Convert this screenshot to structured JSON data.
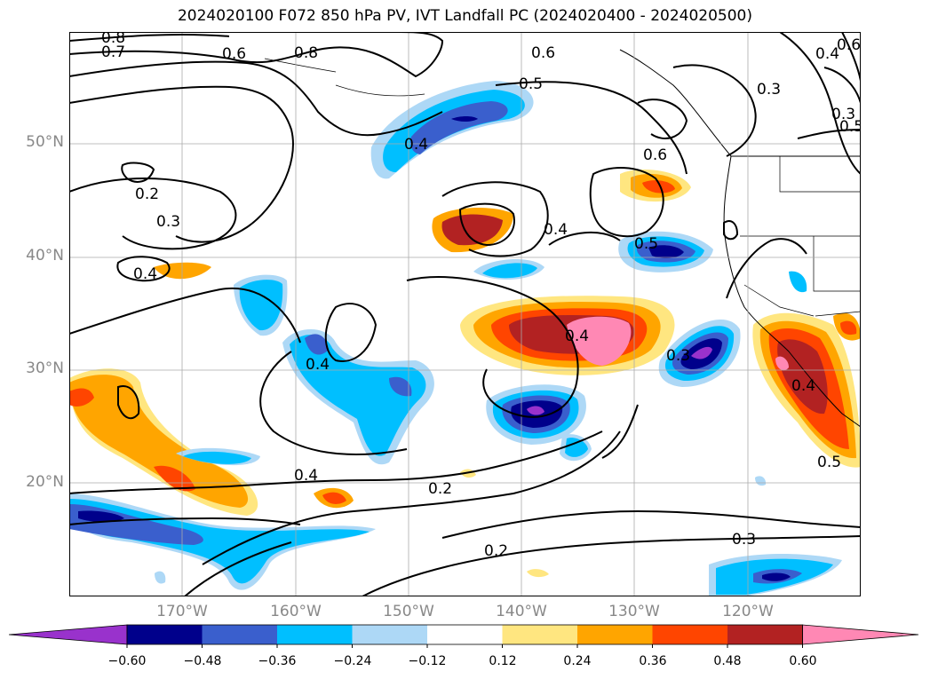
{
  "title": "2024020100 F072 850 hPa PV, IVT Landfall PC (2024020400 - 2024020500)",
  "map": {
    "lat_ticks": [
      "50°N",
      "40°N",
      "30°N",
      "20°N"
    ],
    "lon_ticks": [
      "170°W",
      "160°W",
      "150°W",
      "140°W",
      "130°W",
      "120°W"
    ],
    "extent": {
      "lon": [
        -180,
        -110
      ],
      "lat": [
        10,
        60
      ]
    }
  },
  "contour_labels": [
    "0.8",
    "0.7",
    "0.6",
    "0.8",
    "0.6",
    "0.5",
    "0.4",
    "0.3",
    "0.2",
    "0.3",
    "0.4",
    "0.4",
    "0.5",
    "0.6",
    "0.4",
    "0.4",
    "0.3",
    "0.4",
    "0.5",
    "0.4",
    "0.2",
    "0.2",
    "0.3",
    "0.5",
    "0.4",
    "0.3",
    "0.6"
  ],
  "colorbar": {
    "ticks": [
      "−0.60",
      "−0.48",
      "−0.36",
      "−0.24",
      "−0.12",
      "0.12",
      "0.24",
      "0.36",
      "0.48",
      "0.60"
    ],
    "colors": [
      "#9932cc",
      "#00008b",
      "#3a5fcd",
      "#00bfff",
      "#add8f6",
      "#ffffff",
      "#ffe680",
      "#ffa500",
      "#ff4500",
      "#b22222",
      "#ff88b4"
    ]
  }
}
